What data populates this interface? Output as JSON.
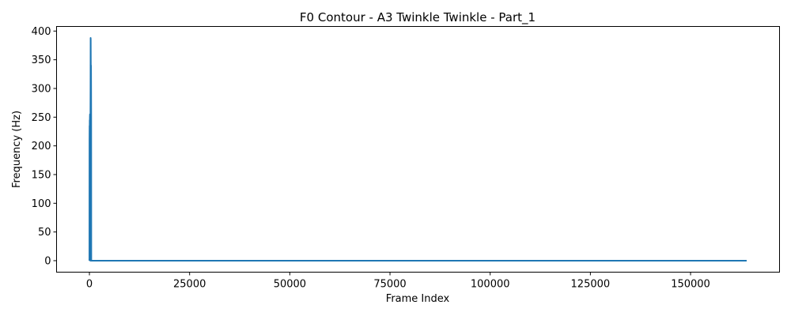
{
  "chart_data": {
    "type": "line",
    "title": "F0 Contour - A3 Twinkle Twinkle - Part_1",
    "xlabel": "Frame Index",
    "ylabel": "Frequency (Hz)",
    "xlim": [
      -8200,
      172200
    ],
    "ylim": [
      -20,
      408
    ],
    "xticks": [
      0,
      25000,
      50000,
      75000,
      100000,
      125000,
      150000
    ],
    "yticks": [
      0,
      50,
      100,
      150,
      200,
      250,
      300,
      350,
      400
    ],
    "grid": false,
    "legend": "none",
    "series": [
      {
        "color": "#1f77b4",
        "x": [
          0,
          20,
          40,
          60,
          80,
          100,
          120,
          140,
          160,
          180,
          200,
          220,
          240,
          260,
          280,
          300,
          320,
          340,
          360,
          380,
          400,
          420,
          440,
          460,
          480,
          500,
          164000
        ],
        "y": [
          0,
          210,
          235,
          220,
          245,
          225,
          250,
          255,
          238,
          240,
          205,
          0,
          0,
          260,
          300,
          388,
          385,
          350,
          320,
          330,
          340,
          300,
          250,
          0,
          0,
          0,
          0
        ]
      }
    ]
  }
}
